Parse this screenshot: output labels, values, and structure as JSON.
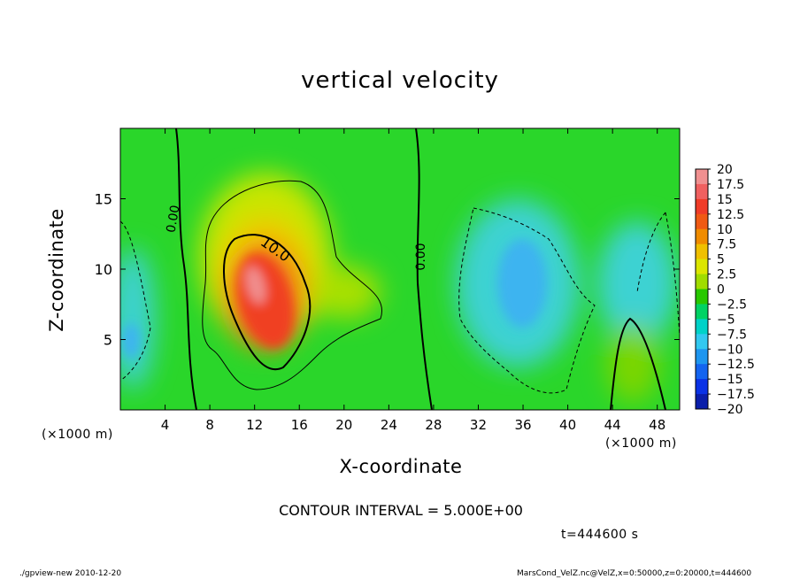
{
  "chart_data": {
    "type": "heatmap",
    "title": "vertical velocity",
    "xlabel": "X-coordinate",
    "ylabel": "Z-coordinate",
    "x_unit_left": "(×1000 m)",
    "x_unit_right": "(×1000 m)",
    "xlim": [
      0,
      50
    ],
    "ylim": [
      0,
      20
    ],
    "x_ticks": [
      4,
      8,
      12,
      16,
      20,
      24,
      28,
      32,
      36,
      40,
      44,
      48
    ],
    "y_ticks": [
      5,
      10,
      15
    ],
    "colorbar": {
      "levels": [
        20,
        17.5,
        15,
        12.5,
        10,
        7.5,
        5,
        2.5,
        0,
        -2.5,
        -5,
        -7.5,
        -10,
        -12.5,
        -15,
        -17.5,
        -20
      ],
      "labels": [
        "20",
        "17.5",
        "15",
        "12.5",
        "10",
        "7.5",
        "5",
        "2.5",
        "0",
        "−2.5",
        "−5",
        "−7.5",
        "−10",
        "−12.5",
        "−15",
        "−17.5",
        "−20"
      ],
      "colors": [
        "#f09090",
        "#f06060",
        "#f03c28",
        "#f05a14",
        "#f08c00",
        "#f0c000",
        "#dce600",
        "#a0dc00",
        "#28c800",
        "#00d264",
        "#00d2c8",
        "#32c8f0",
        "#1e96f0",
        "#1464f0",
        "#0a32e6",
        "#0a1eaa",
        "#7814b4"
      ]
    },
    "contour_labels": [
      "0.00",
      "10.0",
      "0.00"
    ],
    "features": [
      {
        "kind": "updraft",
        "x": 12.5,
        "z": 8.5,
        "peak": 18
      },
      {
        "kind": "weak downdraft",
        "x": 35,
        "z": 8,
        "min": -9
      },
      {
        "kind": "weak downdraft",
        "x": 1,
        "z": 5,
        "min": -7
      }
    ]
  },
  "contour_interval": "CONTOUR INTERVAL = 5.000E+00",
  "time_label": "t=444600 s",
  "footer_left": "./gpview-new   2010-12-20",
  "footer_right": "MarsCond_VelZ.nc@VelZ,x=0:50000,z=0:20000,t=444600"
}
